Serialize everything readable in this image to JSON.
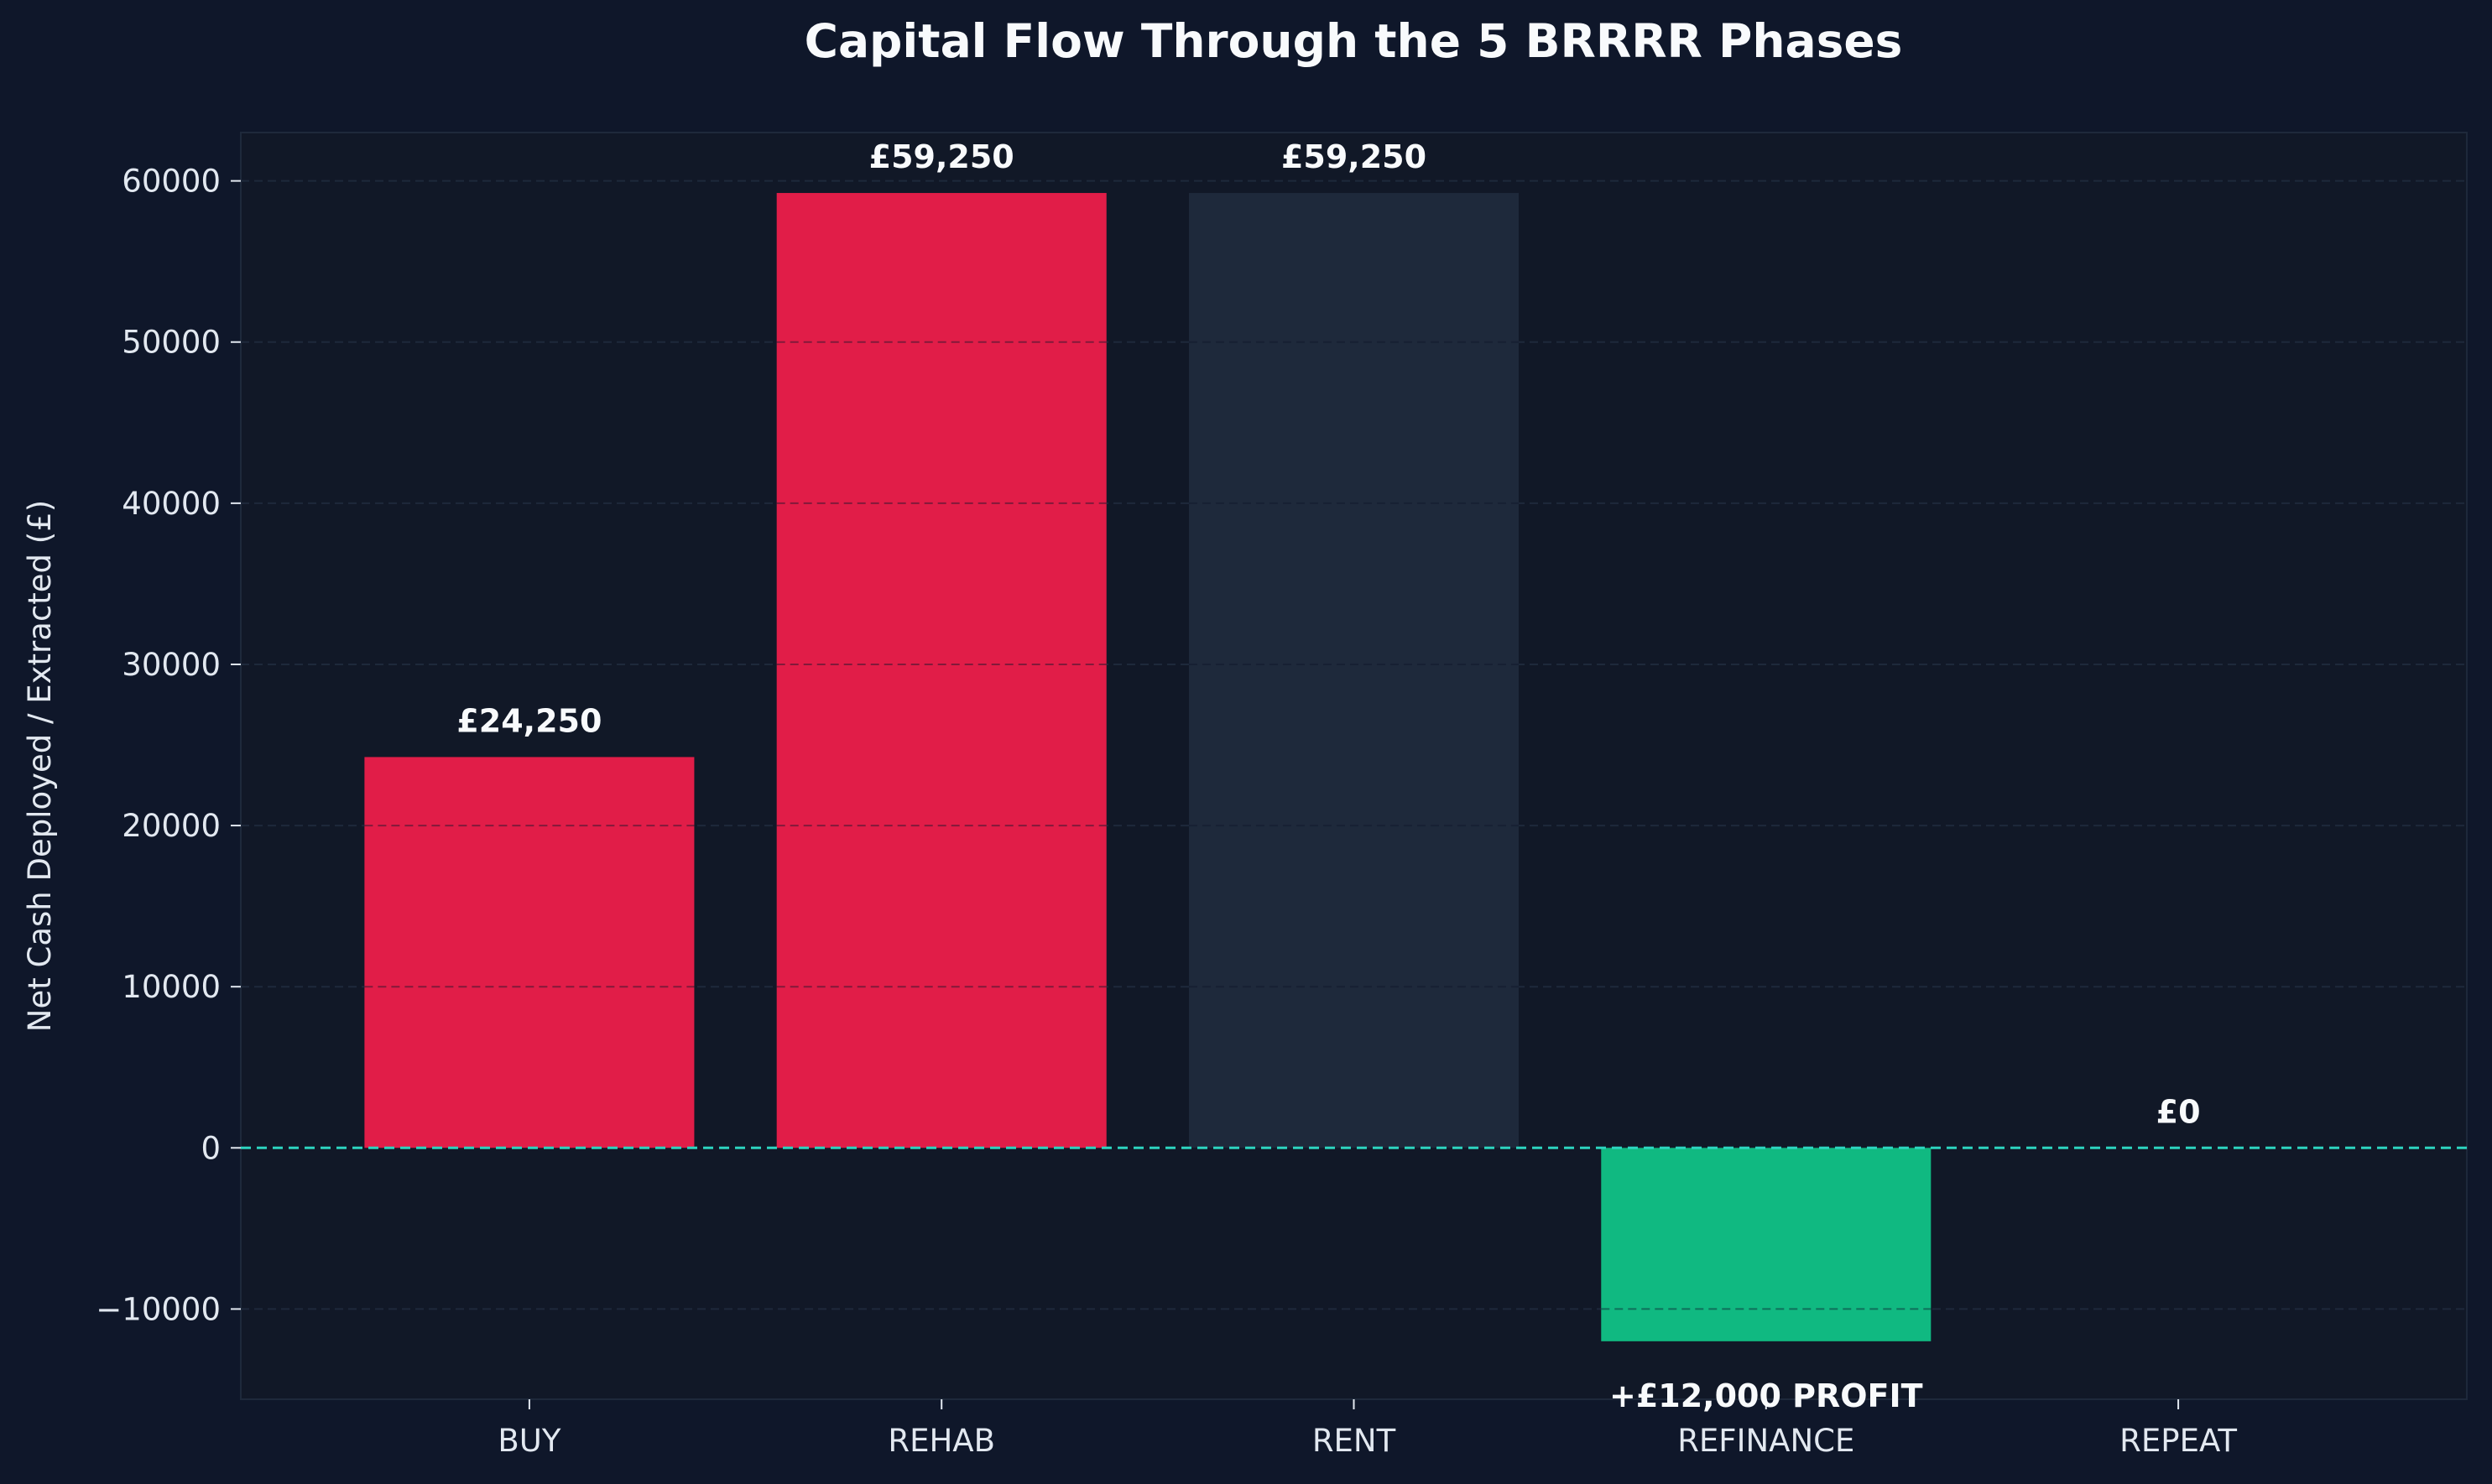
{
  "chart_data": {
    "type": "bar",
    "title": "Capital Flow Through the 5 BRRRR Phases",
    "xlabel": "",
    "ylabel": "Net Cash Deployed / Extracted (£)",
    "categories": [
      "BUY",
      "REHAB",
      "RENT",
      "REFINANCE",
      "REPEAT"
    ],
    "values": [
      24250,
      59250,
      59250,
      -12000,
      0
    ],
    "data_labels": [
      "£24,250",
      "£59,250",
      "£59,250",
      "+£12,000 PROFIT",
      "£0"
    ],
    "bar_colors": [
      "#e11d48",
      "#e11d48",
      "#1e293b",
      "#10b981",
      "#10b981"
    ],
    "ylim": [
      -15600,
      63000
    ],
    "yticks": [
      -10000,
      0,
      10000,
      20000,
      30000,
      40000,
      50000,
      60000
    ],
    "ytick_labels": [
      "−10000",
      "0",
      "10000",
      "20000",
      "30000",
      "40000",
      "50000",
      "60000"
    ],
    "grid": true,
    "zero_line_color": "#2dd4bf"
  }
}
